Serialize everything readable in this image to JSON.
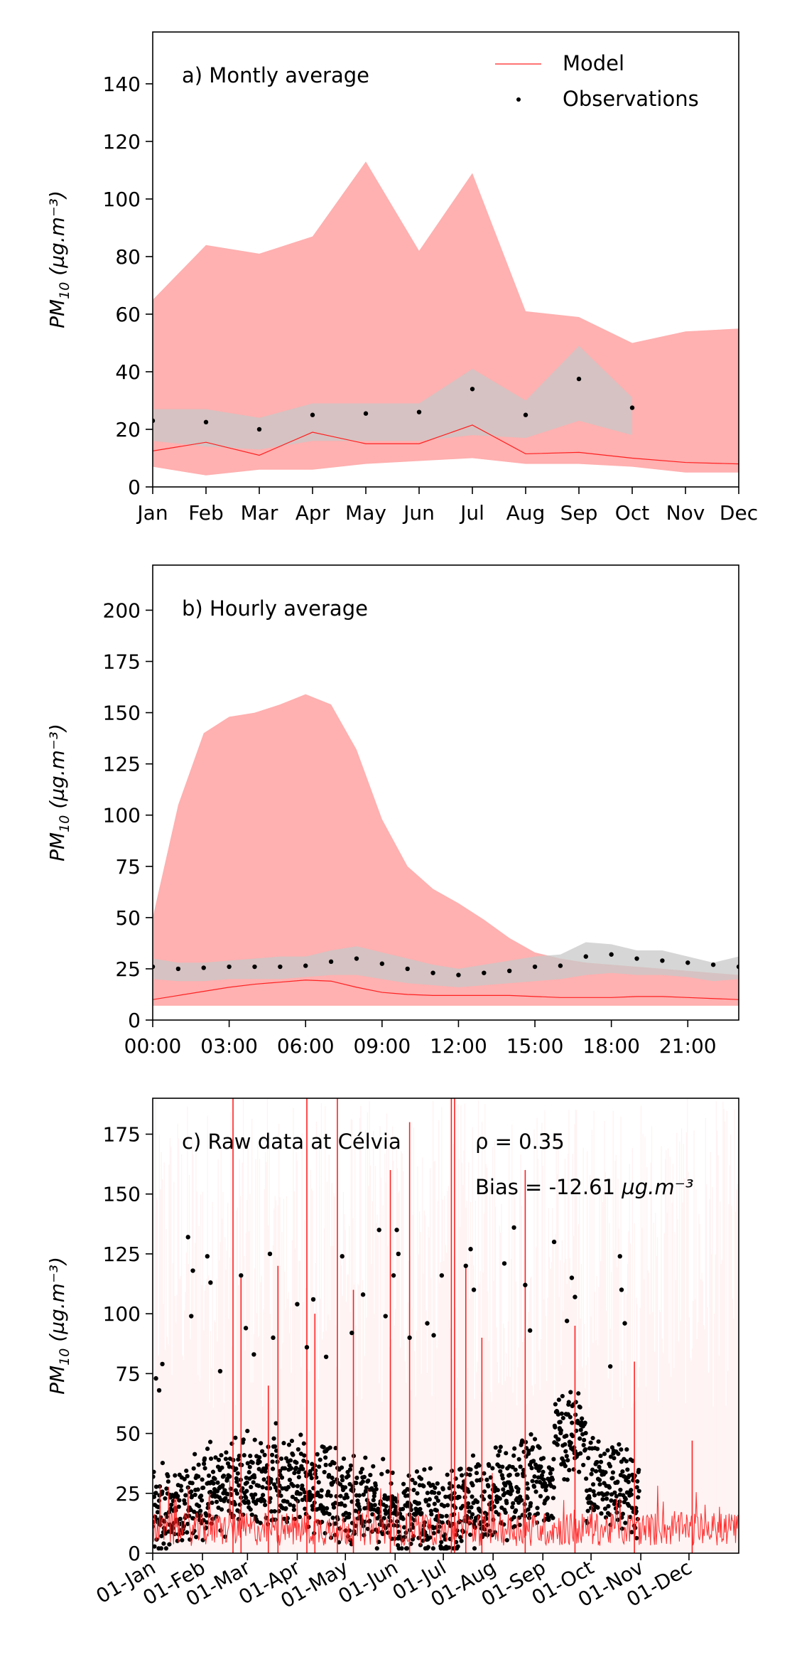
{
  "chart_data": [
    {
      "type": "line",
      "title": "a) Montly average",
      "ylabel_base": "PM",
      "ylabel_sub": "10",
      "ylabel_units": "(µg.m⁻³)",
      "ylim": [
        0,
        158
      ],
      "yticks": [
        0,
        20,
        40,
        60,
        80,
        100,
        120,
        140
      ],
      "xlim": [
        0,
        11
      ],
      "xtick_positions": [
        0,
        1,
        2,
        3,
        4,
        5,
        6,
        7,
        8,
        9,
        10,
        11
      ],
      "xtick_labels": [
        "Jan",
        "Feb",
        "Mar",
        "Apr",
        "May",
        "Jun",
        "Jul",
        "Aug",
        "Sep",
        "Oct",
        "Nov",
        "Dec"
      ],
      "legend": {
        "position": "top-right",
        "model": "Model",
        "observations": "Observations"
      },
      "model_range": {
        "x": [
          0,
          1,
          2,
          3,
          4,
          5,
          6,
          7,
          8,
          9,
          10,
          11
        ],
        "upper": [
          65,
          84,
          81,
          87,
          113,
          82,
          109,
          61,
          59,
          50,
          54,
          55
        ],
        "lower": [
          7,
          4,
          6,
          6,
          8,
          9,
          10,
          8,
          8,
          7,
          5,
          5
        ]
      },
      "model": {
        "x": [
          0,
          1,
          2,
          3,
          4,
          5,
          6,
          7,
          8,
          9,
          10,
          11
        ],
        "y": [
          12.5,
          15.5,
          11,
          19,
          15,
          15,
          21.5,
          11.5,
          12,
          10,
          8.5,
          8
        ]
      },
      "obs_range": {
        "x": [
          0,
          1,
          2,
          3,
          4,
          5,
          6,
          7,
          8,
          9
        ],
        "upper": [
          27,
          27,
          24,
          29,
          29,
          29,
          41,
          30,
          49,
          31
        ],
        "lower": [
          16,
          14,
          13,
          16,
          16,
          16,
          18,
          17,
          23,
          18
        ]
      },
      "observations": {
        "x": [
          0,
          1,
          2,
          3,
          4,
          5,
          6,
          7,
          8,
          9
        ],
        "y": [
          23,
          22.5,
          20,
          25,
          25.5,
          26,
          34,
          25,
          37.5,
          27.5
        ]
      }
    },
    {
      "type": "line",
      "title": "b) Hourly average",
      "ylabel_base": "PM",
      "ylabel_sub": "10",
      "ylabel_units": "(µg.m⁻³)",
      "ylim": [
        0,
        222
      ],
      "yticks": [
        0,
        25,
        50,
        75,
        100,
        125,
        150,
        175,
        200
      ],
      "xlim": [
        0,
        23
      ],
      "xtick_positions": [
        0,
        3,
        6,
        9,
        12,
        15,
        18,
        21
      ],
      "xtick_labels": [
        "00:00",
        "03:00",
        "06:00",
        "09:00",
        "12:00",
        "15:00",
        "18:00",
        "21:00"
      ],
      "model_range": {
        "x": [
          0,
          1,
          2,
          3,
          4,
          5,
          6,
          7,
          8,
          9,
          10,
          11,
          12,
          13,
          14,
          15,
          16,
          17,
          18,
          19,
          20,
          21,
          22,
          23
        ],
        "upper": [
          50,
          105,
          140,
          148,
          150,
          154,
          159,
          154,
          132,
          98,
          75,
          64,
          57,
          49,
          40,
          33,
          30,
          28,
          27,
          26,
          25,
          24,
          23,
          22
        ],
        "lower": [
          7,
          7,
          7,
          7,
          7,
          7,
          7,
          7,
          7,
          7,
          7,
          7,
          7,
          7,
          7,
          7,
          7,
          7,
          7,
          7,
          7,
          7,
          7,
          7
        ]
      },
      "model": {
        "x": [
          0,
          1,
          2,
          3,
          4,
          5,
          6,
          7,
          8,
          9,
          10,
          11,
          12,
          13,
          14,
          15,
          16,
          17,
          18,
          19,
          20,
          21,
          22,
          23
        ],
        "y": [
          10,
          12,
          14,
          16,
          17.5,
          18.5,
          19.5,
          19,
          16,
          13.5,
          12.5,
          12,
          12,
          12,
          12,
          11.5,
          11,
          11,
          11,
          11.5,
          11.5,
          11,
          10.5,
          10
        ]
      },
      "obs_range": {
        "x": [
          0,
          1,
          2,
          3,
          4,
          5,
          6,
          7,
          8,
          9,
          10,
          11,
          12,
          13,
          14,
          15,
          16,
          17,
          18,
          19,
          20,
          21,
          22,
          23
        ],
        "upper": [
          30,
          28,
          28,
          29,
          30,
          31,
          31,
          34,
          36,
          33,
          30,
          27,
          25,
          27,
          29,
          31,
          32,
          38,
          37,
          34,
          34,
          31,
          28,
          31
        ],
        "lower": [
          20,
          19,
          19,
          20,
          20,
          20,
          21,
          22,
          22,
          20,
          18,
          17,
          16,
          17,
          18,
          19,
          20,
          22,
          23,
          22,
          22,
          21,
          19,
          20
        ]
      },
      "observations": {
        "x": [
          0,
          1,
          2,
          3,
          4,
          5,
          6,
          7,
          8,
          9,
          10,
          11,
          12,
          13,
          14,
          15,
          16,
          17,
          18,
          19,
          20,
          21,
          22,
          23
        ],
        "y": [
          26,
          25,
          25.5,
          26,
          26,
          26,
          26.5,
          28.5,
          30,
          27.5,
          25,
          23,
          22,
          23,
          24,
          26,
          26.5,
          31,
          32,
          30,
          29,
          28,
          27,
          26
        ]
      }
    },
    {
      "type": "line",
      "title": "c) Raw data at Célvia",
      "correlation": "ρ = 0.35",
      "bias": "Bias = -12.61",
      "bias_units": "µg.m⁻³",
      "ylabel_base": "PM",
      "ylabel_sub": "10",
      "ylabel_units": "(µg.m⁻³)",
      "ylim": [
        0,
        190
      ],
      "yticks": [
        0,
        25,
        50,
        75,
        100,
        125,
        150,
        175
      ],
      "x_unit": "day of year",
      "xlim": [
        0,
        365
      ],
      "xtick_positions": [
        0,
        31,
        59,
        90,
        120,
        151,
        181,
        212,
        243,
        273,
        304,
        334
      ],
      "xtick_labels": [
        "01-Jan",
        "01-Feb",
        "01-Mar",
        "01-Apr",
        "01-May",
        "01-Jun",
        "01-Jul",
        "01-Aug",
        "01-Sep",
        "01-Oct",
        "01-Nov",
        "01-Dec"
      ],
      "model_spikes": [
        {
          "x": 50,
          "y": 190
        },
        {
          "x": 55,
          "y": 115
        },
        {
          "x": 72,
          "y": 70
        },
        {
          "x": 78,
          "y": 120
        },
        {
          "x": 96,
          "y": 190
        },
        {
          "x": 101,
          "y": 100
        },
        {
          "x": 115,
          "y": 190
        },
        {
          "x": 125,
          "y": 110
        },
        {
          "x": 148,
          "y": 160
        },
        {
          "x": 160,
          "y": 180
        },
        {
          "x": 186,
          "y": 190
        },
        {
          "x": 188,
          "y": 190
        },
        {
          "x": 195,
          "y": 120
        },
        {
          "x": 205,
          "y": 90
        },
        {
          "x": 232,
          "y": 160
        },
        {
          "x": 263,
          "y": 95
        },
        {
          "x": 300,
          "y": 80
        },
        {
          "x": 336,
          "y": 47
        }
      ],
      "obs_outliers": [
        {
          "x": 2,
          "y": 73
        },
        {
          "x": 4,
          "y": 68
        },
        {
          "x": 6,
          "y": 79
        },
        {
          "x": 22,
          "y": 132
        },
        {
          "x": 25,
          "y": 118
        },
        {
          "x": 24,
          "y": 99
        },
        {
          "x": 34,
          "y": 124
        },
        {
          "x": 36,
          "y": 113
        },
        {
          "x": 42,
          "y": 76
        },
        {
          "x": 55,
          "y": 116
        },
        {
          "x": 58,
          "y": 94
        },
        {
          "x": 63,
          "y": 83
        },
        {
          "x": 73,
          "y": 125
        },
        {
          "x": 75,
          "y": 90
        },
        {
          "x": 90,
          "y": 104
        },
        {
          "x": 96,
          "y": 86
        },
        {
          "x": 100,
          "y": 106
        },
        {
          "x": 108,
          "y": 82
        },
        {
          "x": 118,
          "y": 124
        },
        {
          "x": 124,
          "y": 92
        },
        {
          "x": 131,
          "y": 108
        },
        {
          "x": 141,
          "y": 135
        },
        {
          "x": 145,
          "y": 99
        },
        {
          "x": 150,
          "y": 116
        },
        {
          "x": 152,
          "y": 135
        },
        {
          "x": 153,
          "y": 125
        },
        {
          "x": 160,
          "y": 90
        },
        {
          "x": 171,
          "y": 96
        },
        {
          "x": 175,
          "y": 91
        },
        {
          "x": 180,
          "y": 116
        },
        {
          "x": 195,
          "y": 120
        },
        {
          "x": 198,
          "y": 127
        },
        {
          "x": 200,
          "y": 110
        },
        {
          "x": 219,
          "y": 121
        },
        {
          "x": 225,
          "y": 136
        },
        {
          "x": 232,
          "y": 112
        },
        {
          "x": 235,
          "y": 93
        },
        {
          "x": 250,
          "y": 130
        },
        {
          "x": 258,
          "y": 97
        },
        {
          "x": 261,
          "y": 115
        },
        {
          "x": 263,
          "y": 107
        },
        {
          "x": 291,
          "y": 124
        },
        {
          "x": 292,
          "y": 110
        },
        {
          "x": 294,
          "y": 96
        },
        {
          "x": 285,
          "y": 78
        }
      ],
      "obs_period_end": 303,
      "model_period_end": 365
    }
  ]
}
